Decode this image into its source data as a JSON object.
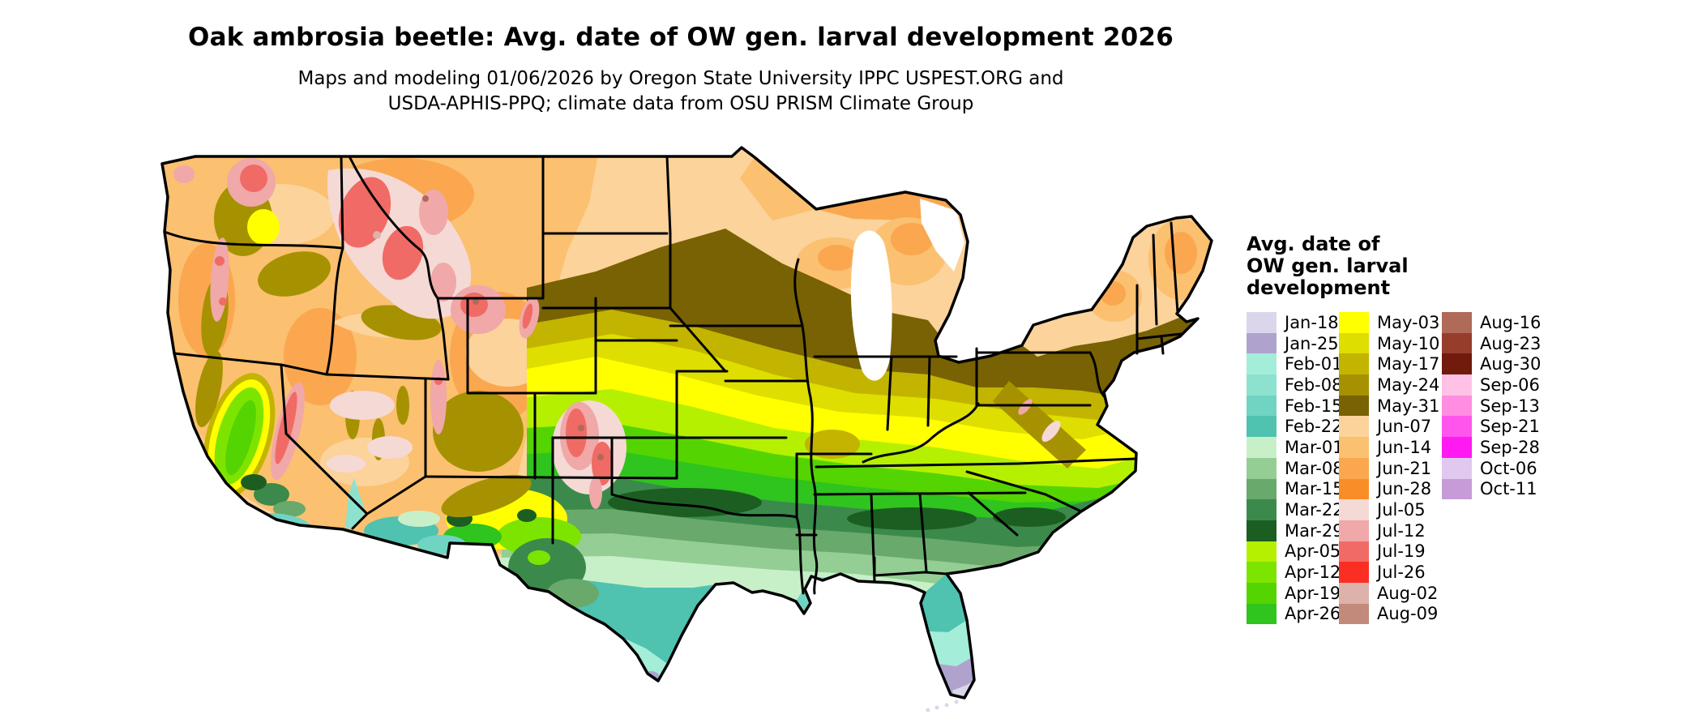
{
  "title": "Oak ambrosia beetle: Avg. date of OW gen. larval development 2026",
  "subtitle_line1": "Maps and modeling 01/06/2026 by Oregon State University IPPC USPEST.ORG and",
  "subtitle_line2": "USDA-APHIS-PPQ; climate data from OSU PRISM Climate Group",
  "map": {
    "name": "Continental United States raster map of average date of overwintering generation larval development",
    "border_color": "#000000",
    "water_color": "#ffffff"
  },
  "legend": {
    "title_lines": [
      "Avg. date of",
      "OW gen. larval",
      "development"
    ],
    "columns": [
      [
        {
          "label": "Jan-18",
          "color": "#DCD6EC"
        },
        {
          "label": "Jan-25",
          "color": "#AFA3CE"
        },
        {
          "label": "Feb-01",
          "color": "#A4EDD9"
        },
        {
          "label": "Feb-08",
          "color": "#8CE2CF"
        },
        {
          "label": "Feb-15",
          "color": "#70D4C3"
        },
        {
          "label": "Feb-22",
          "color": "#4FC2B0"
        },
        {
          "label": "Mar-01",
          "color": "#C8F0C8"
        },
        {
          "label": "Mar-08",
          "color": "#94CE94"
        },
        {
          "label": "Mar-15",
          "color": "#69A96C"
        },
        {
          "label": "Mar-22",
          "color": "#3B8A4C"
        },
        {
          "label": "Mar-29",
          "color": "#1C5E22"
        },
        {
          "label": "Apr-05",
          "color": "#B5F000"
        },
        {
          "label": "Apr-12",
          "color": "#7DE400"
        },
        {
          "label": "Apr-19",
          "color": "#54D400"
        },
        {
          "label": "Apr-26",
          "color": "#2FC41E"
        }
      ],
      [
        {
          "label": "May-03",
          "color": "#FFFF00"
        },
        {
          "label": "May-10",
          "color": "#DEDE00"
        },
        {
          "label": "May-17",
          "color": "#C3B400"
        },
        {
          "label": "May-24",
          "color": "#A69200"
        },
        {
          "label": "May-31",
          "color": "#786203"
        },
        {
          "label": "Jun-07",
          "color": "#FBD39B"
        },
        {
          "label": "Jun-14",
          "color": "#FBC070"
        },
        {
          "label": "Jun-21",
          "color": "#FAA750"
        },
        {
          "label": "Jun-28",
          "color": "#F98D28"
        },
        {
          "label": "Jul-05",
          "color": "#F5D9D5"
        },
        {
          "label": "Jul-12",
          "color": "#F0A8A8"
        },
        {
          "label": "Jul-19",
          "color": "#F06B65"
        },
        {
          "label": "Jul-26",
          "color": "#FB2E24"
        },
        {
          "label": "Aug-02",
          "color": "#DCB2AA"
        },
        {
          "label": "Aug-09",
          "color": "#C28A7A"
        }
      ],
      [
        {
          "label": "Aug-16",
          "color": "#B06A58"
        },
        {
          "label": "Aug-23",
          "color": "#973D2C"
        },
        {
          "label": "Aug-30",
          "color": "#701B0C"
        },
        {
          "label": "Sep-06",
          "color": "#FFC2E6"
        },
        {
          "label": "Sep-13",
          "color": "#FF8DE2"
        },
        {
          "label": "Sep-21",
          "color": "#FF55EC"
        },
        {
          "label": "Sep-28",
          "color": "#FF1AF2"
        },
        {
          "label": "Oct-06",
          "color": "#E0C8EE"
        },
        {
          "label": "Oct-11",
          "color": "#C79BD8"
        }
      ]
    ]
  },
  "colors": {
    "jan18": "#DCD6EC",
    "jan25": "#AFA3CE",
    "feb01": "#A4EDD9",
    "feb08": "#8CE2CF",
    "feb15": "#70D4C3",
    "feb22": "#4FC2B0",
    "mar01": "#C8F0C8",
    "mar08": "#94CE94",
    "mar15": "#69A96C",
    "mar22": "#3B8A4C",
    "mar29": "#1C5E22",
    "apr05": "#B5F000",
    "apr12": "#7DE400",
    "apr19": "#54D400",
    "apr26": "#2FC41E",
    "may03": "#FFFF00",
    "may10": "#DEDE00",
    "may17": "#C3B400",
    "may24": "#A69200",
    "may31": "#786203",
    "jun07": "#FBD39B",
    "jun14": "#FBC070",
    "jun21": "#FAA750",
    "jun28": "#F98D28",
    "jul05": "#F5D9D5",
    "jul12": "#F0A8A8",
    "jul19": "#F06B65",
    "jul26": "#FB2E24",
    "aug02": "#DCB2AA",
    "aug09": "#C28A7A",
    "aug16": "#B06A58",
    "white": "#FFFFFF",
    "black": "#000000"
  }
}
